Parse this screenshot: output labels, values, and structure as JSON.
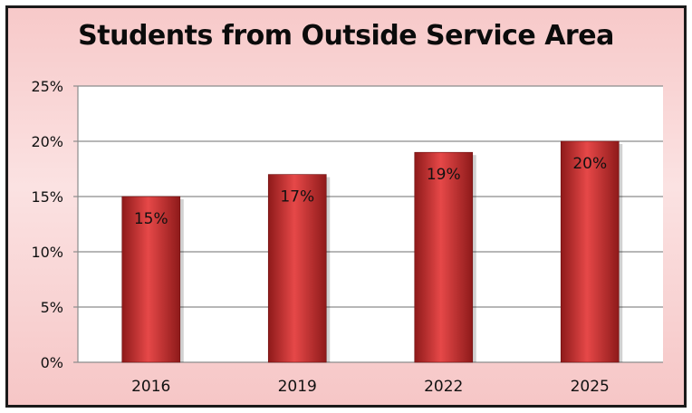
{
  "chart_data": {
    "type": "bar",
    "title": "Students from Outside Service Area",
    "categories": [
      "2016",
      "2019",
      "2022",
      "2025"
    ],
    "values": [
      15,
      17,
      19,
      20
    ],
    "data_labels": [
      "15%",
      "17%",
      "19%",
      "20%"
    ],
    "ylim": [
      0,
      25
    ],
    "yticks": [
      0,
      5,
      10,
      15,
      20,
      25
    ],
    "ytick_labels": [
      "0%",
      "5%",
      "10%",
      "15%",
      "20%",
      "25%"
    ],
    "xlabel": "",
    "ylabel": "",
    "grid": true,
    "colors": {
      "bar_light": "#e64848",
      "bar_dark": "#8e1a1a",
      "gridline": "#8c8c8c"
    }
  }
}
